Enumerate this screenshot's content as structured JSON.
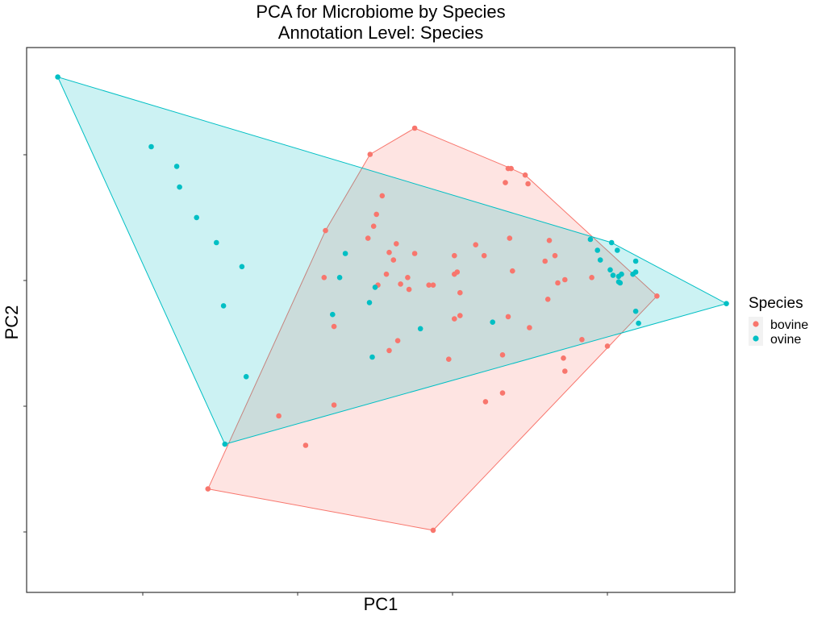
{
  "chart_data": {
    "type": "scatter",
    "title": "PCA for Microbiome by Species",
    "subtitle": "Annotation Level: Species",
    "xlabel": "PC1",
    "ylabel": "PC2",
    "xlim": [
      0,
      100
    ],
    "ylim": [
      0,
      100
    ],
    "grid": false,
    "legend": {
      "title": "Species",
      "placement": "right"
    },
    "series": [
      {
        "name": "bovine",
        "color": "#F8766D",
        "hull": true,
        "points": [
          [
            54.8,
            85.2
          ],
          [
            48.5,
            80.4
          ],
          [
            68.0,
            77.8
          ],
          [
            68.4,
            77.8
          ],
          [
            70.4,
            76.6
          ],
          [
            67.6,
            75.2
          ],
          [
            70.8,
            75.0
          ],
          [
            50.2,
            72.8
          ],
          [
            49.4,
            69.4
          ],
          [
            49.0,
            67.2
          ],
          [
            42.2,
            66.4
          ],
          [
            48.2,
            65.0
          ],
          [
            68.2,
            65.0
          ],
          [
            52.2,
            64.0
          ],
          [
            73.8,
            64.6
          ],
          [
            63.4,
            63.8
          ],
          [
            51.2,
            62.4
          ],
          [
            54.8,
            62.2
          ],
          [
            60.4,
            61.8
          ],
          [
            64.6,
            61.8
          ],
          [
            74.6,
            61.8
          ],
          [
            51.8,
            61.0
          ],
          [
            73.2,
            60.8
          ],
          [
            68.6,
            59.0
          ],
          [
            60.8,
            58.8
          ],
          [
            50.8,
            58.4
          ],
          [
            53.8,
            57.8
          ],
          [
            60.4,
            58.4
          ],
          [
            42.0,
            57.8
          ],
          [
            79.8,
            57.8
          ],
          [
            76.0,
            57.4
          ],
          [
            52.8,
            56.6
          ],
          [
            49.6,
            56.4
          ],
          [
            56.8,
            56.4
          ],
          [
            57.4,
            56.4
          ],
          [
            75.0,
            56.8
          ],
          [
            54.0,
            55.6
          ],
          [
            61.2,
            55.0
          ],
          [
            73.6,
            53.8
          ],
          [
            89.0,
            54.4
          ],
          [
            61.2,
            50.8
          ],
          [
            68.0,
            50.6
          ],
          [
            60.4,
            50.2
          ],
          [
            43.4,
            48.8
          ],
          [
            71.0,
            48.6
          ],
          [
            52.4,
            46.2
          ],
          [
            78.4,
            46.4
          ],
          [
            82.0,
            45.2
          ],
          [
            51.2,
            44.4
          ],
          [
            67.2,
            43.6
          ],
          [
            59.6,
            42.8
          ],
          [
            75.8,
            43.0
          ],
          [
            76.0,
            40.6
          ],
          [
            67.2,
            36.6
          ],
          [
            64.8,
            35.0
          ],
          [
            43.4,
            34.4
          ],
          [
            35.6,
            32.4
          ],
          [
            39.4,
            27.0
          ],
          [
            25.6,
            19.0
          ],
          [
            57.4,
            11.4
          ]
        ]
      },
      {
        "name": "ovine",
        "color": "#00BFC4",
        "hull": true,
        "points": [
          [
            4.4,
            94.6
          ],
          [
            17.6,
            81.8
          ],
          [
            21.2,
            78.2
          ],
          [
            21.6,
            74.4
          ],
          [
            24.0,
            68.8
          ],
          [
            26.8,
            64.2
          ],
          [
            30.4,
            59.8
          ],
          [
            79.6,
            64.8
          ],
          [
            82.6,
            64.2
          ],
          [
            80.6,
            62.8
          ],
          [
            83.4,
            62.8
          ],
          [
            45.0,
            62.2
          ],
          [
            81.0,
            61.0
          ],
          [
            86.0,
            60.8
          ],
          [
            82.4,
            59.2
          ],
          [
            44.2,
            57.8
          ],
          [
            82.8,
            58.2
          ],
          [
            83.6,
            58.0
          ],
          [
            84.0,
            58.4
          ],
          [
            85.6,
            58.4
          ],
          [
            86.0,
            58.8
          ],
          [
            83.6,
            57.0
          ],
          [
            83.8,
            56.8
          ],
          [
            49.2,
            56.0
          ],
          [
            48.4,
            53.2
          ],
          [
            98.8,
            53.0
          ],
          [
            27.8,
            52.6
          ],
          [
            86.0,
            51.6
          ],
          [
            43.2,
            51.0
          ],
          [
            65.8,
            49.6
          ],
          [
            86.4,
            49.4
          ],
          [
            55.6,
            48.4
          ],
          [
            48.8,
            43.2
          ],
          [
            31.0,
            39.6
          ],
          [
            28.0,
            27.2
          ]
        ]
      }
    ]
  }
}
